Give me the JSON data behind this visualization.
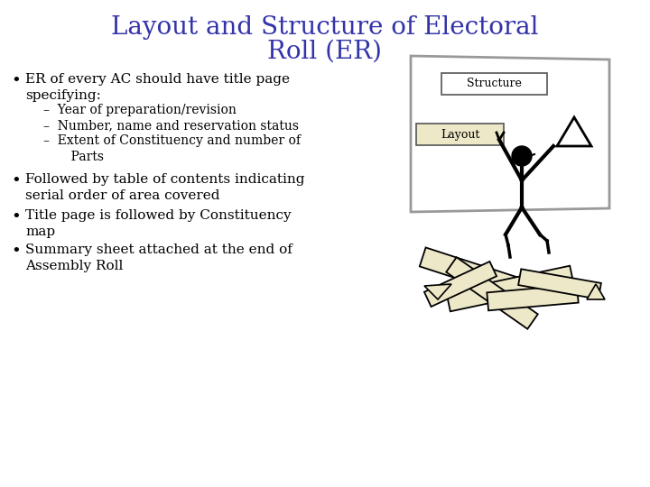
{
  "title_line1": "Layout and Structure of Electoral",
  "title_line2": "Roll (ER)",
  "title_color": "#3333AA",
  "title_fontsize": 20,
  "background_color": "#FFFFFF",
  "bullet_color": "#000000",
  "bullet_fontsize": 11,
  "sub_bullet_fontsize": 10,
  "label_structure": "Structure",
  "label_layout": "Layout",
  "label_fontsize": 9,
  "paper_color": "#EDE8C8",
  "board_edge_color": "#999999",
  "fig_width": 7.2,
  "fig_height": 5.4,
  "dpi": 100
}
